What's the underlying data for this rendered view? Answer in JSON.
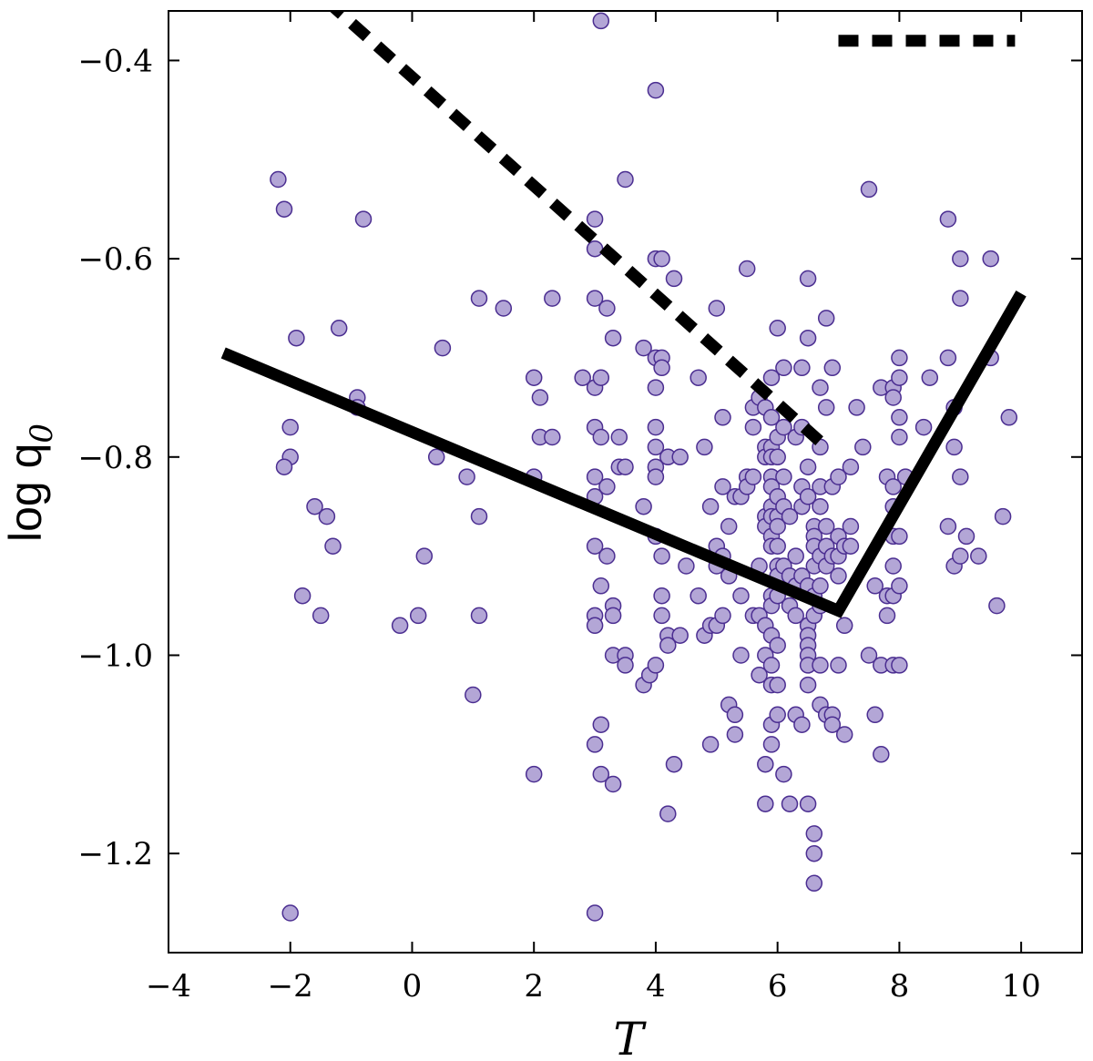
{
  "chart_data": {
    "type": "scatter",
    "xlabel": "T",
    "ylabel": "log q",
    "ylabel_subscript": "0",
    "xlim": [
      -4,
      11
    ],
    "ylim": [
      -1.3,
      -0.35
    ],
    "x_ticks": [
      -4,
      -2,
      0,
      2,
      4,
      6,
      8,
      10
    ],
    "x_tick_labels": [
      "−4",
      "−2",
      "0",
      "2",
      "4",
      "6",
      "8",
      "10"
    ],
    "y_ticks": [
      -0.4,
      -0.6,
      -0.8,
      -1.0,
      -1.2
    ],
    "y_tick_labels": [
      "−0.4",
      "−0.6",
      "−0.8",
      "−1.0",
      "−1.2"
    ],
    "grid": false,
    "marker_color": "#b3a6d6",
    "marker_edge_color": "#4b2e91",
    "points": [
      [
        -2.2,
        -0.52
      ],
      [
        -2.1,
        -0.55
      ],
      [
        -2.0,
        -0.77
      ],
      [
        -2.0,
        -0.8
      ],
      [
        -2.1,
        -0.81
      ],
      [
        -1.9,
        -0.68
      ],
      [
        -1.8,
        -0.94
      ],
      [
        -1.6,
        -0.85
      ],
      [
        -1.5,
        -0.96
      ],
      [
        -1.4,
        -0.86
      ],
      [
        -1.3,
        -0.89
      ],
      [
        -1.2,
        -0.67
      ],
      [
        -0.9,
        -0.74
      ],
      [
        -0.9,
        -0.75
      ],
      [
        -0.8,
        -0.56
      ],
      [
        -2.0,
        -1.26
      ],
      [
        -0.2,
        -0.97
      ],
      [
        0.1,
        -0.96
      ],
      [
        0.2,
        -0.9
      ],
      [
        0.4,
        -0.8
      ],
      [
        0.5,
        -0.69
      ],
      [
        0.9,
        -0.82
      ],
      [
        1.0,
        -1.04
      ],
      [
        1.1,
        -0.64
      ],
      [
        1.1,
        -0.86
      ],
      [
        1.1,
        -0.96
      ],
      [
        1.5,
        -0.65
      ],
      [
        2.0,
        -0.72
      ],
      [
        2.0,
        -0.82
      ],
      [
        2.1,
        -0.74
      ],
      [
        2.1,
        -0.78
      ],
      [
        2.3,
        -0.64
      ],
      [
        2.3,
        -0.78
      ],
      [
        2.0,
        -1.12
      ],
      [
        2.8,
        -0.72
      ],
      [
        3.0,
        -0.56
      ],
      [
        3.0,
        -0.59
      ],
      [
        3.0,
        -0.64
      ],
      [
        3.0,
        -0.73
      ],
      [
        3.0,
        -0.77
      ],
      [
        3.0,
        -0.82
      ],
      [
        3.0,
        -0.84
      ],
      [
        3.0,
        -0.89
      ],
      [
        3.0,
        -0.96
      ],
      [
        3.0,
        -0.97
      ],
      [
        3.0,
        -1.09
      ],
      [
        3.0,
        -1.26
      ],
      [
        3.1,
        -0.36
      ],
      [
        3.1,
        -0.72
      ],
      [
        3.1,
        -0.78
      ],
      [
        3.1,
        -0.93
      ],
      [
        3.1,
        -1.07
      ],
      [
        3.1,
        -1.12
      ],
      [
        3.2,
        -0.65
      ],
      [
        3.2,
        -0.83
      ],
      [
        3.2,
        -0.9
      ],
      [
        3.3,
        -0.68
      ],
      [
        3.3,
        -0.95
      ],
      [
        3.3,
        -0.96
      ],
      [
        3.3,
        -1.0
      ],
      [
        3.3,
        -1.13
      ],
      [
        3.4,
        -0.78
      ],
      [
        3.4,
        -0.81
      ],
      [
        3.5,
        -0.52
      ],
      [
        3.5,
        -0.81
      ],
      [
        3.5,
        -1.0
      ],
      [
        3.5,
        -1.01
      ],
      [
        3.8,
        -0.85
      ],
      [
        3.8,
        -0.69
      ],
      [
        3.8,
        -1.03
      ],
      [
        3.9,
        -1.02
      ],
      [
        4.0,
        -0.43
      ],
      [
        4.0,
        -0.6
      ],
      [
        4.0,
        -0.7
      ],
      [
        4.0,
        -0.73
      ],
      [
        4.0,
        -0.77
      ],
      [
        4.0,
        -0.79
      ],
      [
        4.0,
        -0.81
      ],
      [
        4.0,
        -0.82
      ],
      [
        4.0,
        -0.88
      ],
      [
        4.0,
        -1.01
      ],
      [
        4.1,
        -0.6
      ],
      [
        4.1,
        -0.7
      ],
      [
        4.1,
        -0.71
      ],
      [
        4.1,
        -0.9
      ],
      [
        4.1,
        -0.94
      ],
      [
        4.1,
        -0.96
      ],
      [
        4.2,
        -0.8
      ],
      [
        4.2,
        -0.98
      ],
      [
        4.2,
        -0.99
      ],
      [
        4.2,
        -1.16
      ],
      [
        4.3,
        -0.62
      ],
      [
        4.3,
        -1.11
      ],
      [
        4.4,
        -0.8
      ],
      [
        4.4,
        -0.98
      ],
      [
        4.5,
        -0.91
      ],
      [
        4.7,
        -0.72
      ],
      [
        4.7,
        -0.94
      ],
      [
        4.8,
        -0.79
      ],
      [
        4.8,
        -0.98
      ],
      [
        4.9,
        -0.85
      ],
      [
        4.9,
        -0.97
      ],
      [
        4.9,
        -1.09
      ],
      [
        5.0,
        -0.65
      ],
      [
        5.0,
        -0.89
      ],
      [
        5.0,
        -0.91
      ],
      [
        5.0,
        -0.97
      ],
      [
        5.1,
        -0.76
      ],
      [
        5.1,
        -0.83
      ],
      [
        5.1,
        -0.9
      ],
      [
        5.1,
        -0.96
      ],
      [
        5.2,
        -0.87
      ],
      [
        5.2,
        -0.92
      ],
      [
        5.2,
        -1.05
      ],
      [
        5.3,
        -0.84
      ],
      [
        5.3,
        -1.06
      ],
      [
        5.3,
        -1.08
      ],
      [
        5.4,
        -0.84
      ],
      [
        5.4,
        -0.94
      ],
      [
        5.4,
        -1.0
      ],
      [
        5.5,
        -0.61
      ],
      [
        5.5,
        -0.82
      ],
      [
        5.5,
        -0.83
      ],
      [
        5.6,
        -0.75
      ],
      [
        5.6,
        -0.77
      ],
      [
        5.6,
        -0.82
      ],
      [
        5.6,
        -0.96
      ],
      [
        5.7,
        -0.91
      ],
      [
        5.7,
        -0.96
      ],
      [
        5.7,
        -1.02
      ],
      [
        5.7,
        -0.74
      ],
      [
        5.8,
        -0.75
      ],
      [
        5.8,
        -0.79
      ],
      [
        5.8,
        -0.8
      ],
      [
        5.8,
        -0.86
      ],
      [
        5.8,
        -0.87
      ],
      [
        5.8,
        -0.97
      ],
      [
        5.8,
        -1.0
      ],
      [
        5.8,
        -1.11
      ],
      [
        5.8,
        -1.15
      ],
      [
        5.9,
        -0.72
      ],
      [
        5.9,
        -0.76
      ],
      [
        5.9,
        -0.79
      ],
      [
        5.9,
        -0.8
      ],
      [
        5.9,
        -0.82
      ],
      [
        5.9,
        -0.83
      ],
      [
        5.9,
        -0.85
      ],
      [
        5.9,
        -0.86
      ],
      [
        5.9,
        -0.88
      ],
      [
        5.9,
        -0.89
      ],
      [
        5.9,
        -0.94
      ],
      [
        5.9,
        -0.95
      ],
      [
        5.9,
        -0.98
      ],
      [
        5.9,
        -1.01
      ],
      [
        5.9,
        -1.03
      ],
      [
        5.9,
        -1.07
      ],
      [
        5.9,
        -1.09
      ],
      [
        6.0,
        -0.67
      ],
      [
        6.0,
        -0.78
      ],
      [
        6.0,
        -0.8
      ],
      [
        6.0,
        -0.84
      ],
      [
        6.0,
        -0.86
      ],
      [
        6.0,
        -0.87
      ],
      [
        6.0,
        -0.89
      ],
      [
        6.0,
        -0.91
      ],
      [
        6.0,
        -0.92
      ],
      [
        6.0,
        -0.94
      ],
      [
        6.0,
        -0.99
      ],
      [
        6.0,
        -1.03
      ],
      [
        6.0,
        -1.06
      ],
      [
        6.1,
        -0.71
      ],
      [
        6.1,
        -0.77
      ],
      [
        6.1,
        -0.82
      ],
      [
        6.1,
        -0.85
      ],
      [
        6.1,
        -0.91
      ],
      [
        6.1,
        -1.12
      ],
      [
        6.2,
        -0.86
      ],
      [
        6.2,
        -0.92
      ],
      [
        6.2,
        -0.95
      ],
      [
        6.2,
        -1.15
      ],
      [
        6.3,
        -0.78
      ],
      [
        6.3,
        -0.9
      ],
      [
        6.3,
        -0.93
      ],
      [
        6.3,
        -0.96
      ],
      [
        6.3,
        -1.06
      ],
      [
        6.4,
        -0.71
      ],
      [
        6.4,
        -0.77
      ],
      [
        6.4,
        -0.83
      ],
      [
        6.4,
        -0.85
      ],
      [
        6.4,
        -0.92
      ],
      [
        6.4,
        -1.07
      ],
      [
        6.5,
        -0.62
      ],
      [
        6.5,
        -0.68
      ],
      [
        6.5,
        -0.81
      ],
      [
        6.5,
        -0.84
      ],
      [
        6.5,
        -0.93
      ],
      [
        6.5,
        -0.97
      ],
      [
        6.5,
        -0.98
      ],
      [
        6.5,
        -0.99
      ],
      [
        6.5,
        -1.0
      ],
      [
        6.5,
        -1.01
      ],
      [
        6.5,
        -1.03
      ],
      [
        6.5,
        -1.15
      ],
      [
        6.6,
        -0.87
      ],
      [
        6.6,
        -0.88
      ],
      [
        6.6,
        -0.89
      ],
      [
        6.6,
        -0.91
      ],
      [
        6.6,
        -0.94
      ],
      [
        6.6,
        -0.96
      ],
      [
        6.6,
        -1.18
      ],
      [
        6.6,
        -1.2
      ],
      [
        6.6,
        -1.23
      ],
      [
        6.7,
        -0.73
      ],
      [
        6.7,
        -0.79
      ],
      [
        6.7,
        -0.83
      ],
      [
        6.7,
        -0.85
      ],
      [
        6.7,
        -0.9
      ],
      [
        6.7,
        -0.93
      ],
      [
        6.7,
        -0.95
      ],
      [
        6.7,
        -1.01
      ],
      [
        6.7,
        -1.05
      ],
      [
        6.8,
        -0.66
      ],
      [
        6.8,
        -0.75
      ],
      [
        6.8,
        -0.87
      ],
      [
        6.8,
        -0.89
      ],
      [
        6.8,
        -0.91
      ],
      [
        6.8,
        -1.06
      ],
      [
        6.9,
        -0.71
      ],
      [
        6.9,
        -0.83
      ],
      [
        6.9,
        -0.9
      ],
      [
        6.9,
        -1.06
      ],
      [
        6.9,
        -1.07
      ],
      [
        7.0,
        -0.82
      ],
      [
        7.0,
        -0.9
      ],
      [
        7.0,
        -0.92
      ],
      [
        7.0,
        -1.01
      ],
      [
        7.0,
        -0.88
      ],
      [
        7.1,
        -0.89
      ],
      [
        7.1,
        -0.97
      ],
      [
        7.1,
        -1.08
      ],
      [
        7.2,
        -0.81
      ],
      [
        7.2,
        -0.87
      ],
      [
        7.2,
        -0.89
      ],
      [
        7.3,
        -0.75
      ],
      [
        7.4,
        -0.79
      ],
      [
        7.5,
        -0.53
      ],
      [
        7.5,
        -1.0
      ],
      [
        7.6,
        -0.93
      ],
      [
        7.6,
        -1.06
      ],
      [
        7.7,
        -0.73
      ],
      [
        7.7,
        -1.01
      ],
      [
        7.7,
        -1.1
      ],
      [
        7.8,
        -0.82
      ],
      [
        7.8,
        -0.94
      ],
      [
        7.8,
        -0.96
      ],
      [
        7.9,
        -0.73
      ],
      [
        7.9,
        -0.74
      ],
      [
        7.9,
        -0.83
      ],
      [
        7.9,
        -0.85
      ],
      [
        7.9,
        -0.88
      ],
      [
        7.9,
        -0.91
      ],
      [
        7.9,
        -0.94
      ],
      [
        7.9,
        -1.01
      ],
      [
        8.0,
        -0.7
      ],
      [
        8.0,
        -0.72
      ],
      [
        8.0,
        -0.76
      ],
      [
        8.0,
        -0.78
      ],
      [
        8.0,
        -0.88
      ],
      [
        8.0,
        -0.93
      ],
      [
        8.0,
        -1.01
      ],
      [
        8.1,
        -0.82
      ],
      [
        8.4,
        -0.77
      ],
      [
        8.5,
        -0.72
      ],
      [
        8.8,
        -0.56
      ],
      [
        8.8,
        -0.7
      ],
      [
        8.8,
        -0.87
      ],
      [
        8.9,
        -0.75
      ],
      [
        8.9,
        -0.79
      ],
      [
        8.9,
        -0.91
      ],
      [
        9.0,
        -0.6
      ],
      [
        9.0,
        -0.64
      ],
      [
        9.0,
        -0.82
      ],
      [
        9.0,
        -0.9
      ],
      [
        9.1,
        -0.88
      ],
      [
        9.3,
        -0.9
      ],
      [
        9.5,
        -0.6
      ],
      [
        9.5,
        -0.7
      ],
      [
        9.6,
        -0.95
      ],
      [
        9.7,
        -0.86
      ],
      [
        9.8,
        -0.76
      ]
    ],
    "lines": [
      {
        "style": "solid",
        "x": [
          -3.1,
          7.0,
          10.0
        ],
        "y": [
          -0.695,
          -0.955,
          -0.635
        ]
      },
      {
        "style": "dashed",
        "x": [
          -1.4,
          6.8
        ],
        "y": [
          -0.34,
          -0.79
        ]
      },
      {
        "style": "dashed",
        "x": [
          7.0,
          9.9
        ],
        "y": [
          -0.38,
          -0.38
        ]
      }
    ]
  }
}
